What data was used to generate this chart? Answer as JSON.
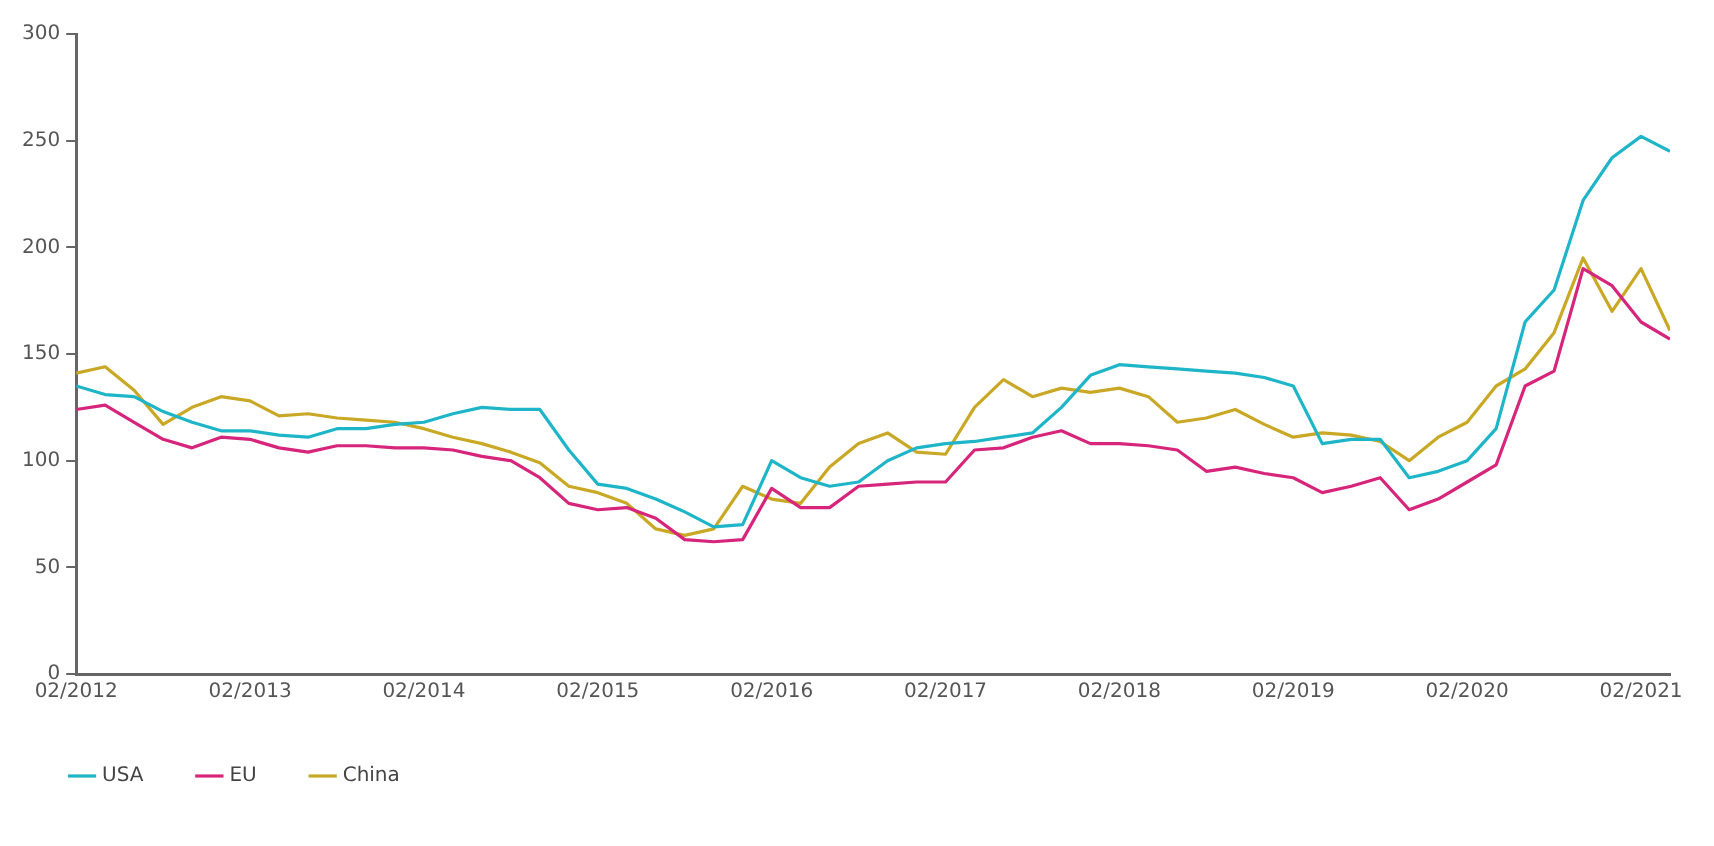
{
  "chart_data": {
    "type": "line",
    "x": [
      "2012-02",
      "2012-04",
      "2012-06",
      "2012-08",
      "2012-10",
      "2012-12",
      "2013-02",
      "2013-04",
      "2013-06",
      "2013-08",
      "2013-10",
      "2013-12",
      "2014-02",
      "2014-04",
      "2014-06",
      "2014-08",
      "2014-10",
      "2014-12",
      "2015-02",
      "2015-04",
      "2015-06",
      "2015-08",
      "2015-10",
      "2015-12",
      "2016-02",
      "2016-04",
      "2016-06",
      "2016-08",
      "2016-10",
      "2016-12",
      "2017-02",
      "2017-04",
      "2017-06",
      "2017-08",
      "2017-10",
      "2017-12",
      "2018-02",
      "2018-04",
      "2018-06",
      "2018-08",
      "2018-10",
      "2018-12",
      "2019-02",
      "2019-04",
      "2019-06",
      "2019-08",
      "2019-10",
      "2019-12",
      "2020-02",
      "2020-04",
      "2020-06",
      "2020-08",
      "2020-10",
      "2020-12",
      "2021-02",
      "2021-04"
    ],
    "series": [
      {
        "name": "USA",
        "color": "#1fb5c8",
        "values": [
          135,
          131,
          130,
          123,
          118,
          114,
          114,
          112,
          111,
          115,
          115,
          117,
          118,
          122,
          125,
          124,
          124,
          105,
          89,
          87,
          82,
          76,
          69,
          70,
          100,
          92,
          88,
          90,
          100,
          106,
          108,
          109,
          111,
          113,
          125,
          140,
          145,
          144,
          143,
          142,
          141,
          139,
          135,
          108,
          110,
          110,
          92,
          95,
          100,
          115,
          165,
          180,
          222,
          242,
          252,
          245
        ]
      },
      {
        "name": "EU",
        "color": "#d6257a",
        "values": [
          124,
          126,
          118,
          110,
          106,
          111,
          110,
          106,
          104,
          107,
          107,
          106,
          106,
          105,
          102,
          100,
          92,
          80,
          77,
          78,
          73,
          63,
          62,
          63,
          87,
          78,
          78,
          88,
          89,
          90,
          90,
          105,
          106,
          111,
          114,
          108,
          108,
          107,
          105,
          95,
          97,
          94,
          92,
          85,
          88,
          92,
          77,
          82,
          90,
          98,
          135,
          142,
          190,
          182,
          165,
          157
        ]
      },
      {
        "name": "China",
        "color": "#c9a825",
        "values": [
          141,
          144,
          133,
          117,
          125,
          130,
          128,
          121,
          122,
          120,
          119,
          118,
          115,
          111,
          108,
          104,
          99,
          88,
          85,
          80,
          68,
          65,
          68,
          88,
          82,
          80,
          97,
          108,
          113,
          104,
          103,
          125,
          138,
          130,
          134,
          132,
          134,
          130,
          118,
          120,
          124,
          117,
          111,
          113,
          112,
          109,
          100,
          111,
          118,
          135,
          143,
          160,
          195,
          170,
          190,
          161
        ]
      }
    ],
    "xlim": [
      "2012-02",
      "2021-04"
    ],
    "xticks": [
      {
        "value": "2012-02",
        "label": "02/2012"
      },
      {
        "value": "2013-02",
        "label": "02/2013"
      },
      {
        "value": "2014-02",
        "label": "02/2014"
      },
      {
        "value": "2015-02",
        "label": "02/2015"
      },
      {
        "value": "2016-02",
        "label": "02/2016"
      },
      {
        "value": "2017-02",
        "label": "02/2017"
      },
      {
        "value": "2018-02",
        "label": "02/2018"
      },
      {
        "value": "2019-02",
        "label": "02/2019"
      },
      {
        "value": "2020-02",
        "label": "02/2020"
      },
      {
        "value": "2021-02",
        "label": "02/2021"
      }
    ],
    "ylim": [
      0,
      300
    ],
    "yticks": [
      0,
      50,
      100,
      150,
      200,
      250,
      300
    ],
    "grid": false,
    "legend": "bottom left",
    "marker": "none",
    "line_style": "solid"
  }
}
